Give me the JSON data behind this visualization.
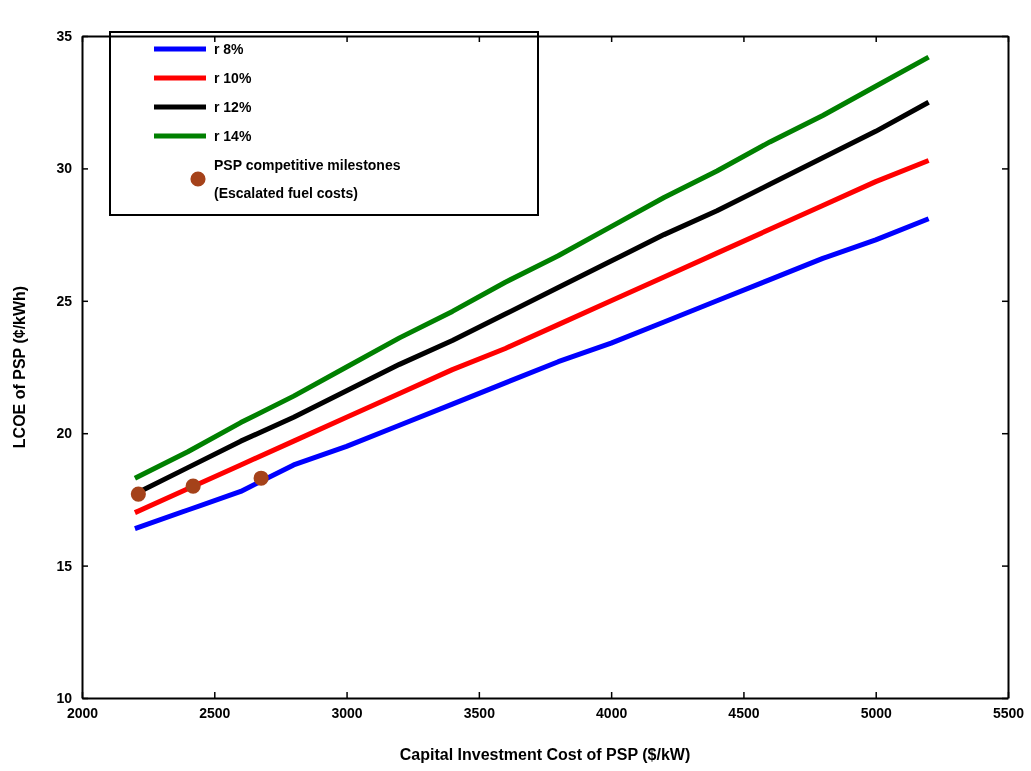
{
  "chart_data": {
    "type": "line",
    "xlabel": "Capital Investment Cost of PSP ($/kW)",
    "ylabel": "LCOE of PSP (¢/kWh)",
    "xlim": [
      2000,
      5500
    ],
    "xticks": [
      2000,
      2500,
      3000,
      3500,
      4000,
      4500,
      5000,
      5500
    ],
    "ylim": [
      10,
      35
    ],
    "yticks": [
      10,
      15,
      20,
      25,
      30,
      35
    ],
    "grid": false,
    "legend": "top left",
    "line_style": "solid",
    "x": [
      2200,
      2400,
      2600,
      2800,
      3000,
      3200,
      3400,
      3600,
      3800,
      4000,
      4200,
      4400,
      4600,
      4800,
      5000,
      5200
    ],
    "series": [
      {
        "name": "r 8%",
        "color": "#0000ff",
        "marker": "none",
        "values": [
          16.4,
          17.1,
          17.8,
          18.8,
          19.5,
          20.3,
          21.1,
          21.9,
          22.7,
          23.4,
          24.2,
          25.0,
          25.8,
          26.6,
          27.3,
          28.1
        ]
      },
      {
        "name": "r 10%",
        "color": "#ff0000",
        "marker": "none",
        "values": [
          17.0,
          17.9,
          18.8,
          19.7,
          20.6,
          21.5,
          22.4,
          23.2,
          24.1,
          25.0,
          25.9,
          26.8,
          27.7,
          28.6,
          29.5,
          30.3
        ]
      },
      {
        "name": "r 12%",
        "color": "#000000",
        "marker": "none",
        "values": [
          17.7,
          18.7,
          19.7,
          20.6,
          21.6,
          22.6,
          23.5,
          24.5,
          25.5,
          26.5,
          27.5,
          28.4,
          29.4,
          30.4,
          31.4,
          32.5
        ]
      },
      {
        "name": "r 14%",
        "color": "#008000",
        "marker": "none",
        "values": [
          18.3,
          19.3,
          20.4,
          21.4,
          22.5,
          23.6,
          24.6,
          25.7,
          26.7,
          27.8,
          28.9,
          29.9,
          31.0,
          32.0,
          33.1,
          34.2
        ]
      },
      {
        "name": "PSP competitive milestones\n(Escalated fuel costs)",
        "type": "scatter",
        "marker": "circle",
        "color": "#a5421a",
        "x": [
          2213,
          2420,
          2677
        ],
        "values": [
          17.7,
          18.0,
          18.3
        ]
      }
    ]
  }
}
